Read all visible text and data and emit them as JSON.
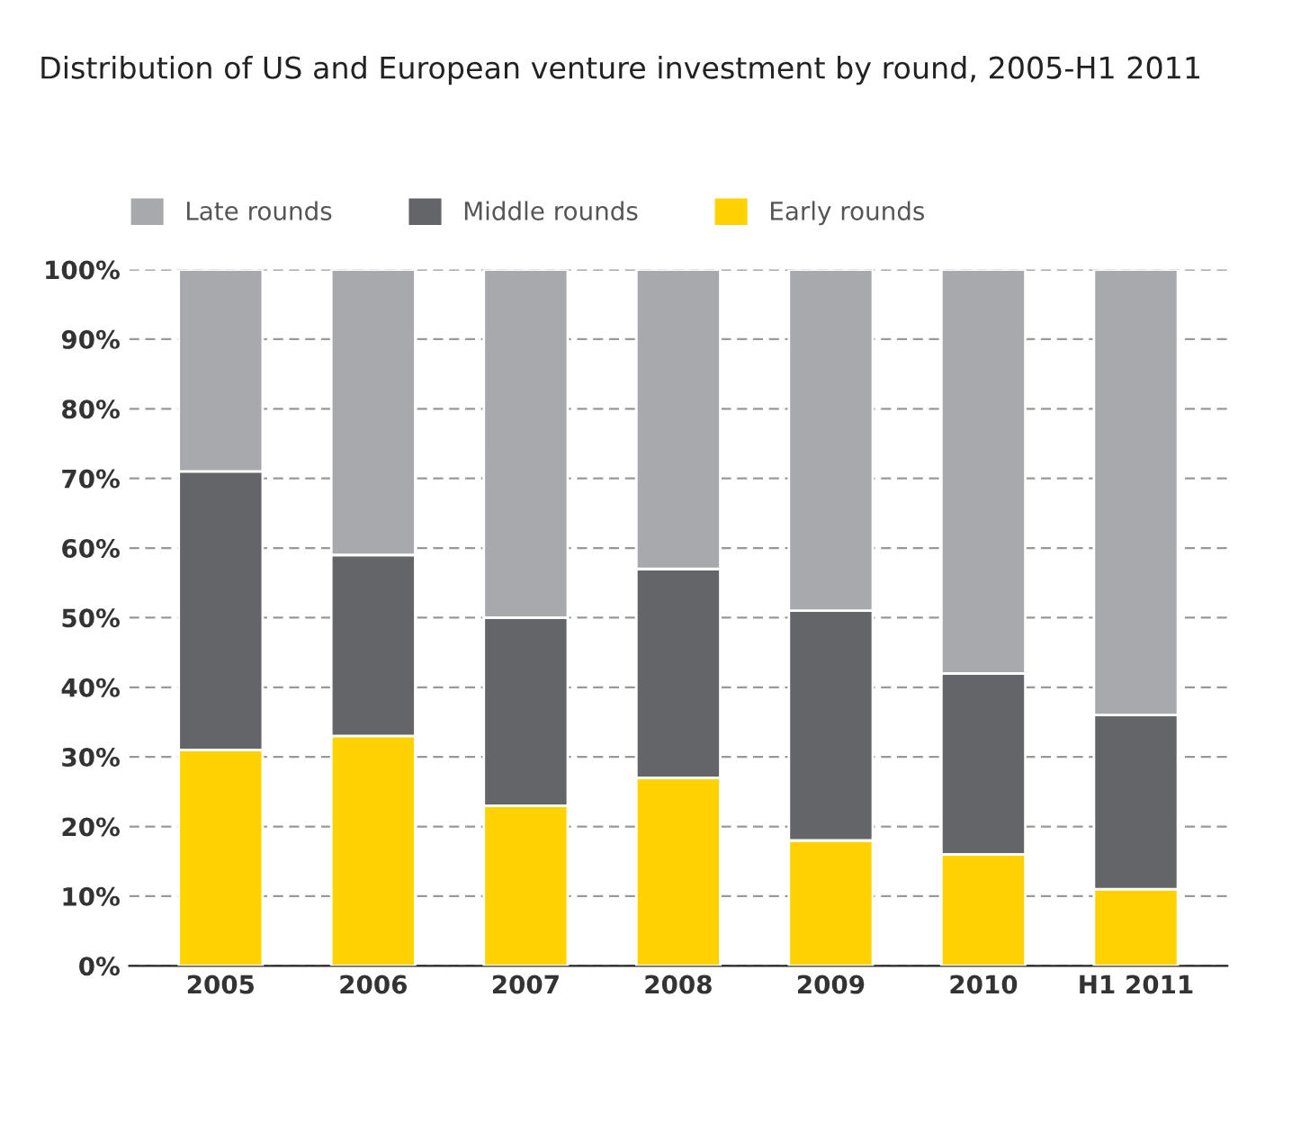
{
  "chart_data": {
    "type": "bar",
    "title": "Distribution of US and European venture investment by round, 2005-H1 2011",
    "categories": [
      "2005",
      "2006",
      "2007",
      "2008",
      "2009",
      "2010",
      "H1 2011"
    ],
    "stacked": true,
    "series": [
      {
        "name": "Early rounds",
        "color": "#ffd200",
        "values": [
          31,
          33,
          23,
          27,
          18,
          16,
          11
        ]
      },
      {
        "name": "Middle rounds",
        "color": "#646569",
        "values": [
          40,
          26,
          27,
          30,
          33,
          26,
          25
        ]
      },
      {
        "name": "Late rounds",
        "color": "#a7a9ac",
        "values": [
          29,
          41,
          50,
          43,
          49,
          58,
          64
        ]
      }
    ],
    "ylim": [
      0,
      100
    ],
    "yticks": [
      {
        "value": 0,
        "label": "0%"
      },
      {
        "value": 10,
        "label": "10%"
      },
      {
        "value": 20,
        "label": "20%"
      },
      {
        "value": 30,
        "label": "30%"
      },
      {
        "value": 40,
        "label": "40%"
      },
      {
        "value": 50,
        "label": "50%"
      },
      {
        "value": 60,
        "label": "60%"
      },
      {
        "value": 70,
        "label": "70%"
      },
      {
        "value": 80,
        "label": "80%"
      },
      {
        "value": 90,
        "label": "90%"
      },
      {
        "value": 100,
        "label": "100%"
      }
    ],
    "grid": "y",
    "legend": "top left"
  }
}
